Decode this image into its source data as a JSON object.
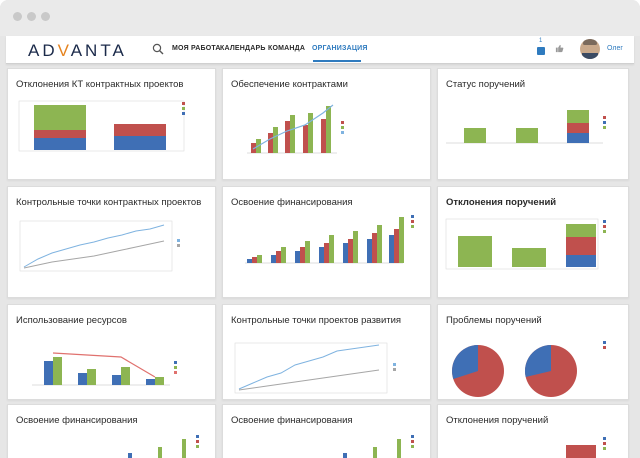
{
  "app": {
    "logo_text": "ADVANTA",
    "logo_accent_color": "#e5831f",
    "logo_color": "#1b2a4a"
  },
  "nav": {
    "items": [
      {
        "label": "МОЯ РАБОТА",
        "active": false
      },
      {
        "label": "КАЛЕНДАРЬ",
        "active": false
      },
      {
        "label": "КОМАНДА",
        "active": false
      },
      {
        "label": "ОРГАНИЗАЦИЯ",
        "active": true
      }
    ],
    "notification_count": "1",
    "user_name": "Олег",
    "accent_color": "#2f7bbf"
  },
  "tiles": [
    {
      "title": "Отклонения КТ контрактных проектов",
      "bold": false
    },
    {
      "title": "Обеспечение контрактами",
      "bold": false
    },
    {
      "title": "Статус поручений",
      "bold": false
    },
    {
      "title": "Контрольные точки контрактных проектов",
      "bold": false
    },
    {
      "title": "Освоение финансирования",
      "bold": false
    },
    {
      "title": "Отклонения поручений",
      "bold": true
    },
    {
      "title": "Использование ресурсов",
      "bold": false
    },
    {
      "title": "Контрольные точки проектов развития",
      "bold": false
    },
    {
      "title": "Проблемы поручений",
      "bold": false
    },
    {
      "title": "Освоение финансирования",
      "bold": false
    },
    {
      "title": "Освоение финансирования",
      "bold": false
    },
    {
      "title": "Отклонения поручений",
      "bold": false
    }
  ],
  "colors": {
    "blue": "#3f6fb5",
    "red": "#c0504d",
    "green": "#8db552",
    "light_blue": "#7fb3e0",
    "gray": "#a6a6a6"
  },
  "chart_data": [
    {
      "type": "bar",
      "stacked": true,
      "categories": [
        "",
        ""
      ],
      "series": [
        {
          "values": [
            30,
            28
          ]
        },
        {
          "values": [
            10,
            6
          ]
        },
        {
          "values": [
            60,
            0
          ]
        }
      ],
      "ylim": [
        0,
        100
      ]
    },
    {
      "type": "bar",
      "series": [
        {
          "values": [
            1,
            2,
            3,
            2,
            4,
            5,
            6,
            7
          ]
        },
        {
          "values": [
            2,
            3,
            4,
            5,
            6,
            7,
            8,
            9
          ]
        }
      ],
      "line": [
        1,
        2,
        3,
        4,
        6,
        7,
        8,
        9
      ]
    },
    {
      "type": "bar",
      "stacked": true,
      "categories": [
        "",
        "",
        ""
      ],
      "series": [
        {
          "values": [
            0,
            0,
            20
          ]
        },
        {
          "values": [
            0,
            0,
            15
          ]
        },
        {
          "values": [
            20,
            20,
            20
          ]
        }
      ],
      "ylim": [
        0,
        60
      ]
    },
    {
      "type": "line",
      "series": [
        {
          "values": [
            3,
            4,
            5,
            6,
            6.5,
            7,
            7.5,
            8,
            8.5,
            9,
            9.5,
            10
          ]
        },
        {
          "values": [
            1,
            2,
            3,
            3.5,
            4,
            4.5,
            5,
            5.5,
            6,
            6.5,
            7,
            7.5
          ]
        }
      ]
    },
    {
      "type": "bar",
      "series": [
        {
          "values": [
            1,
            2,
            2,
            3,
            4,
            4,
            5,
            6
          ]
        },
        {
          "values": [
            2,
            3,
            3,
            4,
            5,
            5,
            6,
            6
          ]
        },
        {
          "values": [
            3,
            4,
            5,
            6,
            7,
            8,
            9,
            10
          ]
        }
      ]
    },
    {
      "type": "bar",
      "stacked": true,
      "categories": [
        "",
        "",
        ""
      ],
      "series": [
        {
          "values": [
            0,
            0,
            10
          ]
        },
        {
          "values": [
            0,
            0,
            15
          ]
        },
        {
          "values": [
            30,
            18,
            12
          ]
        }
      ],
      "ylim": [
        0,
        40
      ]
    },
    {
      "type": "bar",
      "series": [
        {
          "values": [
            10,
            6,
            5,
            3
          ]
        },
        {
          "values": [
            12,
            7,
            8,
            3
          ]
        }
      ],
      "line": [
        12,
        9,
        7,
        3
      ]
    },
    {
      "type": "line",
      "series": [
        {
          "values": [
            2,
            3,
            4,
            5,
            6,
            7,
            8,
            9,
            9.5,
            10
          ]
        },
        {
          "values": [
            1,
            1.5,
            2,
            2.5,
            3,
            3.5,
            4,
            4.5,
            5,
            5.5
          ]
        }
      ]
    },
    {
      "type": "pie",
      "charts": [
        {
          "values": [
            70,
            30
          ]
        },
        {
          "values": [
            65,
            35
          ]
        }
      ]
    },
    {
      "type": "bar",
      "series": [
        {
          "values": [
            1,
            2,
            3,
            4,
            5,
            6
          ]
        },
        {
          "values": [
            2,
            3,
            4,
            5,
            6,
            7
          ]
        },
        {
          "values": [
            3,
            4,
            5,
            6,
            7,
            8
          ]
        }
      ]
    },
    {
      "type": "bar",
      "series": [
        {
          "values": [
            1,
            2,
            3,
            4,
            5,
            6
          ]
        },
        {
          "values": [
            2,
            3,
            4,
            5,
            6,
            7
          ]
        },
        {
          "values": [
            3,
            4,
            5,
            6,
            7,
            8
          ]
        }
      ]
    },
    {
      "type": "bar",
      "stacked": true,
      "series": [
        {
          "values": [
            0,
            0,
            10
          ]
        },
        {
          "values": [
            0,
            0,
            15
          ]
        },
        {
          "values": [
            30,
            18,
            12
          ]
        }
      ]
    }
  ]
}
